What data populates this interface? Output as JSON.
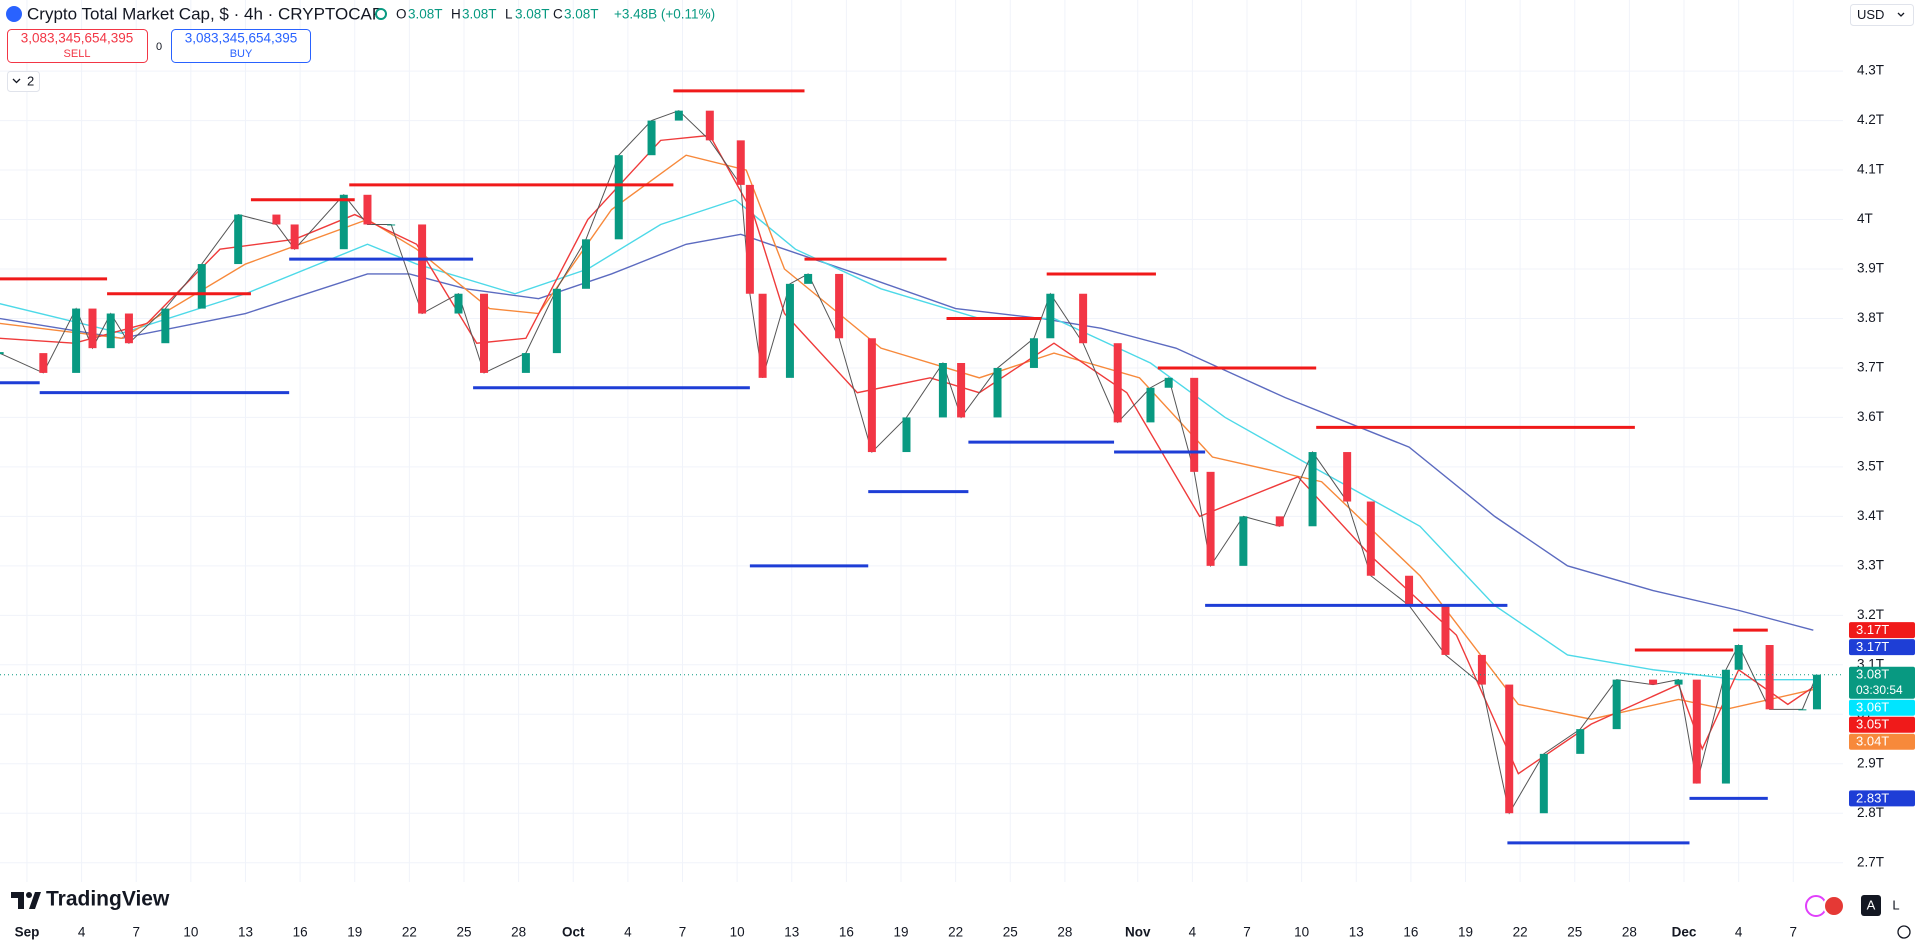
{
  "header": {
    "title": "Crypto Total Market Cap, $ · 4h · CRYPTOCAP",
    "ohlc": [
      {
        "key": "O",
        "value": "3.08T"
      },
      {
        "key": "H",
        "value": "3.08T"
      },
      {
        "key": "L",
        "value": "3.08T"
      },
      {
        "key": "C",
        "value": "3.08T"
      }
    ],
    "change": "+3.48B (+0.11%)",
    "sell": {
      "price": "3,083,345,654,395",
      "label": "SELL"
    },
    "spread": "0",
    "buy": {
      "price": "3,083,345,654,395",
      "label": "BUY"
    },
    "indicators": "2",
    "currency": "USD",
    "logo": "TradingView",
    "buttons": [
      "A",
      "L"
    ]
  },
  "chart_data": {
    "type": "line",
    "grid": true,
    "xlim": [
      -1.48,
      99.73
    ],
    "ylim": [
      2.661,
      4.4437
    ],
    "xticks": [
      {
        "value": 0,
        "label": "Sep"
      },
      {
        "value": 3,
        "label": "4"
      },
      {
        "value": 6,
        "label": "7"
      },
      {
        "value": 9,
        "label": "10"
      },
      {
        "value": 12,
        "label": "13"
      },
      {
        "value": 15,
        "label": "16"
      },
      {
        "value": 18,
        "label": "19"
      },
      {
        "value": 21,
        "label": "22"
      },
      {
        "value": 24,
        "label": "25"
      },
      {
        "value": 27,
        "label": "28"
      },
      {
        "value": 30,
        "label": "Oct"
      },
      {
        "value": 33,
        "label": "4"
      },
      {
        "value": 36,
        "label": "7"
      },
      {
        "value": 39,
        "label": "10"
      },
      {
        "value": 42,
        "label": "13"
      },
      {
        "value": 45,
        "label": "16"
      },
      {
        "value": 48,
        "label": "19"
      },
      {
        "value": 51,
        "label": "22"
      },
      {
        "value": 54,
        "label": "25"
      },
      {
        "value": 57,
        "label": "28"
      },
      {
        "value": 61,
        "label": "Nov"
      },
      {
        "value": 64,
        "label": "4"
      },
      {
        "value": 67,
        "label": "7"
      },
      {
        "value": 70,
        "label": "10"
      },
      {
        "value": 73,
        "label": "13"
      },
      {
        "value": 76,
        "label": "16"
      },
      {
        "value": 79,
        "label": "19"
      },
      {
        "value": 82,
        "label": "22"
      },
      {
        "value": 85,
        "label": "25"
      },
      {
        "value": 88,
        "label": "28"
      },
      {
        "value": 91,
        "label": "Dec"
      },
      {
        "value": 94,
        "label": "4"
      },
      {
        "value": 97,
        "label": "7"
      }
    ],
    "yticks": [
      {
        "value": 2.7,
        "label": "2.7T"
      },
      {
        "value": 2.8,
        "label": "2.8T"
      },
      {
        "value": 2.9,
        "label": "2.9T"
      },
      {
        "value": 3.0,
        "label": "3T"
      },
      {
        "value": 3.1,
        "label": "3.1T"
      },
      {
        "value": 3.2,
        "label": "3.2T"
      },
      {
        "value": 3.3,
        "label": "3.3T"
      },
      {
        "value": 3.4,
        "label": "3.4T"
      },
      {
        "value": 3.5,
        "label": "3.5T"
      },
      {
        "value": 3.6,
        "label": "3.6T"
      },
      {
        "value": 3.7,
        "label": "3.7T"
      },
      {
        "value": 3.8,
        "label": "3.8T"
      },
      {
        "value": 3.9,
        "label": "3.9T"
      },
      {
        "value": 4.0,
        "label": "4T"
      },
      {
        "value": 4.1,
        "label": "4.1T"
      },
      {
        "value": 4.2,
        "label": "4.2T"
      },
      {
        "value": 4.3,
        "label": "4.3T"
      }
    ],
    "series": [
      {
        "color": "#5c6bc0",
        "x": [
          -1.5,
          5.2,
          12.0,
          18.7,
          21.0,
          24.1,
          28.1,
          32.1,
          36.2,
          39.2,
          41.6,
          45.6,
          51.0,
          55.7,
          59.0,
          63.1,
          69.1,
          75.9,
          80.6,
          84.6,
          89.3,
          94.0,
          98.1
        ],
        "values": [
          3.8,
          3.76,
          3.81,
          3.89,
          3.89,
          3.86,
          3.84,
          3.89,
          3.95,
          3.97,
          3.94,
          3.89,
          3.82,
          3.8,
          3.78,
          3.74,
          3.64,
          3.54,
          3.4,
          3.3,
          3.25,
          3.21,
          3.17
        ]
      },
      {
        "color": "#4dd9e8",
        "x": [
          -1.5,
          5.2,
          12.0,
          18.7,
          21.4,
          26.8,
          30.8,
          34.8,
          38.9,
          42.2,
          46.9,
          52.3,
          56.4,
          61.7,
          65.8,
          71.1,
          76.5,
          80.6,
          84.6,
          89.3,
          94.0,
          98.1
        ],
        "values": [
          3.83,
          3.77,
          3.85,
          3.95,
          3.91,
          3.85,
          3.9,
          3.99,
          4.04,
          3.94,
          3.86,
          3.8,
          3.8,
          3.71,
          3.6,
          3.49,
          3.38,
          3.22,
          3.12,
          3.09,
          3.07,
          3.07
        ]
      },
      {
        "color": "#f7893b",
        "x": [
          -1.5,
          5.2,
          12.0,
          18.7,
          21.4,
          25.4,
          28.1,
          32.1,
          36.2,
          39.5,
          41.6,
          46.9,
          52.3,
          56.4,
          61.1,
          65.1,
          71.1,
          76.5,
          81.9,
          85.9,
          90.7,
          93.3,
          98.1
        ],
        "values": [
          3.79,
          3.76,
          3.91,
          4.0,
          3.94,
          3.82,
          3.81,
          4.02,
          4.13,
          4.1,
          3.9,
          3.74,
          3.68,
          3.73,
          3.68,
          3.52,
          3.47,
          3.28,
          3.02,
          2.99,
          3.03,
          3.01,
          3.05
        ]
      },
      {
        "color": "#ef3b3b",
        "x": [
          -1.5,
          2.6,
          6.6,
          10.6,
          14.7,
          18.0,
          21.4,
          24.7,
          27.4,
          30.8,
          34.8,
          37.5,
          39.9,
          41.6,
          45.6,
          49.6,
          52.3,
          56.4,
          60.4,
          64.4,
          69.8,
          73.8,
          78.5,
          81.9,
          85.9,
          90.7,
          92.0,
          94.0,
          96.7,
          98.3
        ],
        "values": [
          3.76,
          3.75,
          3.79,
          3.94,
          3.96,
          4.01,
          3.95,
          3.75,
          3.76,
          4.0,
          4.16,
          4.17,
          4.01,
          3.81,
          3.65,
          3.68,
          3.65,
          3.75,
          3.65,
          3.4,
          3.48,
          3.32,
          3.16,
          2.88,
          2.98,
          3.06,
          2.93,
          3.09,
          3.02,
          3.06
        ]
      },
      {
        "style": "candles",
        "color": "#089981",
        "down_color": "#f23645",
        "x": [
          -1.5,
          0.9,
          2.7,
          3.6,
          4.6,
          5.6,
          7.6,
          9.6,
          11.6,
          13.7,
          14.7,
          17.4,
          18.7,
          20.0,
          21.7,
          23.7,
          25.1,
          27.4,
          29.1,
          30.7,
          32.5,
          34.3,
          35.8,
          37.5,
          39.2,
          39.7,
          40.4,
          41.9,
          42.9,
          44.6,
          46.4,
          48.3,
          50.3,
          51.3,
          53.3,
          55.3,
          56.2,
          58.0,
          59.9,
          61.7,
          62.7,
          64.1,
          65.0,
          66.8,
          68.8,
          70.6,
          72.5,
          73.8,
          75.9,
          77.9,
          79.9,
          81.4,
          83.3,
          85.3,
          87.3,
          89.3,
          90.7,
          91.7,
          93.3,
          94.0,
          95.7,
          97.5,
          98.3
        ],
        "values": [
          3.73,
          3.69,
          3.82,
          3.74,
          3.81,
          3.75,
          3.82,
          3.91,
          4.01,
          3.99,
          3.94,
          4.05,
          3.99,
          3.99,
          3.81,
          3.85,
          3.69,
          3.73,
          3.86,
          3.96,
          4.13,
          4.2,
          4.22,
          4.16,
          4.07,
          3.85,
          3.68,
          3.87,
          3.89,
          3.76,
          3.53,
          3.6,
          3.71,
          3.6,
          3.7,
          3.76,
          3.85,
          3.75,
          3.59,
          3.66,
          3.68,
          3.49,
          3.3,
          3.4,
          3.38,
          3.53,
          3.43,
          3.28,
          3.22,
          3.12,
          3.06,
          2.8,
          2.92,
          2.97,
          3.07,
          3.06,
          3.07,
          2.86,
          3.09,
          3.14,
          3.01,
          3.01,
          3.08
        ]
      }
    ],
    "levels": [
      {
        "color": "#f01a1a",
        "x": [
          -1.5,
          4.4
        ],
        "value": 3.88
      },
      {
        "color": "#f01a1a",
        "x": [
          4.4,
          12.3
        ],
        "value": 3.85
      },
      {
        "color": "#f01a1a",
        "x": [
          12.3,
          18.0
        ],
        "value": 4.04
      },
      {
        "color": "#f01a1a",
        "x": [
          17.7,
          35.5
        ],
        "value": 4.07
      },
      {
        "color": "#f01a1a",
        "x": [
          35.5,
          42.7
        ],
        "value": 4.26
      },
      {
        "color": "#f01a1a",
        "x": [
          42.7,
          50.5
        ],
        "value": 3.92
      },
      {
        "color": "#f01a1a",
        "x": [
          50.5,
          55.7
        ],
        "value": 3.8
      },
      {
        "color": "#f01a1a",
        "x": [
          56.0,
          62.0
        ],
        "value": 3.89
      },
      {
        "color": "#f01a1a",
        "x": [
          62.1,
          70.8
        ],
        "value": 3.7
      },
      {
        "color": "#f01a1a",
        "x": [
          70.8,
          88.3
        ],
        "value": 3.58
      },
      {
        "color": "#f01a1a",
        "x": [
          88.3,
          93.7
        ],
        "value": 3.13
      },
      {
        "color": "#f01a1a",
        "x": [
          93.7,
          95.6
        ],
        "value": 3.17
      },
      {
        "color": "#1e3ed6",
        "x": [
          -1.5,
          0.7
        ],
        "value": 3.67
      },
      {
        "color": "#1e3ed6",
        "x": [
          0.7,
          14.4
        ],
        "value": 3.65
      },
      {
        "color": "#1e3ed6",
        "x": [
          14.4,
          24.5
        ],
        "value": 3.92
      },
      {
        "color": "#1e3ed6",
        "x": [
          24.5,
          39.7
        ],
        "value": 3.66
      },
      {
        "color": "#1e3ed6",
        "x": [
          39.7,
          46.2
        ],
        "value": 3.3
      },
      {
        "color": "#1e3ed6",
        "x": [
          46.2,
          51.7
        ],
        "value": 3.45
      },
      {
        "color": "#1e3ed6",
        "x": [
          51.7,
          59.7
        ],
        "value": 3.55
      },
      {
        "color": "#1e3ed6",
        "x": [
          59.7,
          64.7
        ],
        "value": 3.53
      },
      {
        "color": "#1e3ed6",
        "x": [
          64.7,
          81.3
        ],
        "value": 3.22
      },
      {
        "color": "#1e3ed6",
        "x": [
          81.3,
          91.3
        ],
        "value": 2.74
      },
      {
        "color": "#1e3ed6",
        "x": [
          91.3,
          95.6
        ],
        "value": 2.83
      }
    ],
    "price_labels": [
      {
        "value": 3.17,
        "label": "3.17T",
        "color": "#f01a1a"
      },
      {
        "value": 3.17,
        "label": "3.17T",
        "color": "#1e3ed6"
      },
      {
        "value": 3.08,
        "label": "3.08T",
        "color": "#089981",
        "countdown": "03:30:54",
        "line": "dotted"
      },
      {
        "value": 3.06,
        "label": "3.06T",
        "color": "#00e5ff"
      },
      {
        "value": 3.05,
        "label": "3.05T",
        "color": "#f01a1a"
      },
      {
        "value": 3.04,
        "label": "3.04T",
        "color": "#f7893b"
      },
      {
        "value": 2.83,
        "label": "2.83T",
        "color": "#1e3ed6"
      }
    ]
  }
}
